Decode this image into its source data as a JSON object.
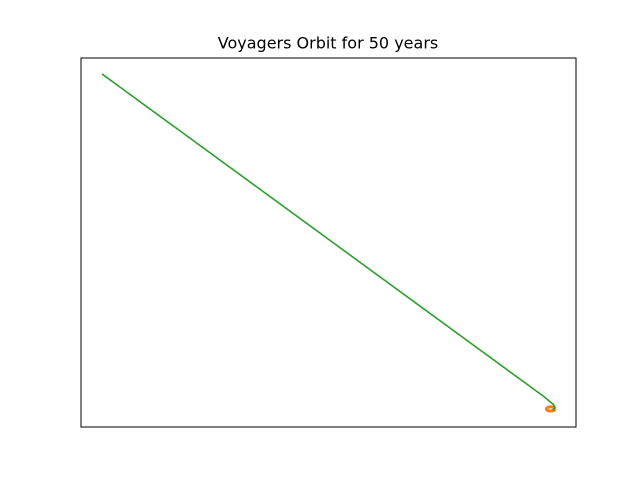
{
  "chart_data": {
    "type": "line",
    "title": "Voyagers Orbit for 50 years",
    "xlim": [
      -130,
      7
    ],
    "ylim": [
      -5,
      97
    ],
    "series": [
      {
        "color": "#ff7f0e",
        "x": [
          1.2,
          1.04,
          0.6,
          0,
          -0.6,
          -1.04,
          -1.2,
          -1.04,
          -0.6,
          0,
          0.6,
          1.04,
          1.2
        ],
        "values": [
          0,
          0.3,
          0.52,
          0.6,
          0.52,
          0.3,
          0,
          -0.3,
          -0.52,
          -0.6,
          -0.52,
          -0.3,
          0
        ]
      },
      {
        "color": "#2ca02c",
        "x": [
          0.5,
          1.2,
          0.8,
          -2,
          -124.2
        ],
        "values": [
          -0.3,
          0.3,
          1.2,
          3.5,
          92.6
        ]
      }
    ]
  }
}
